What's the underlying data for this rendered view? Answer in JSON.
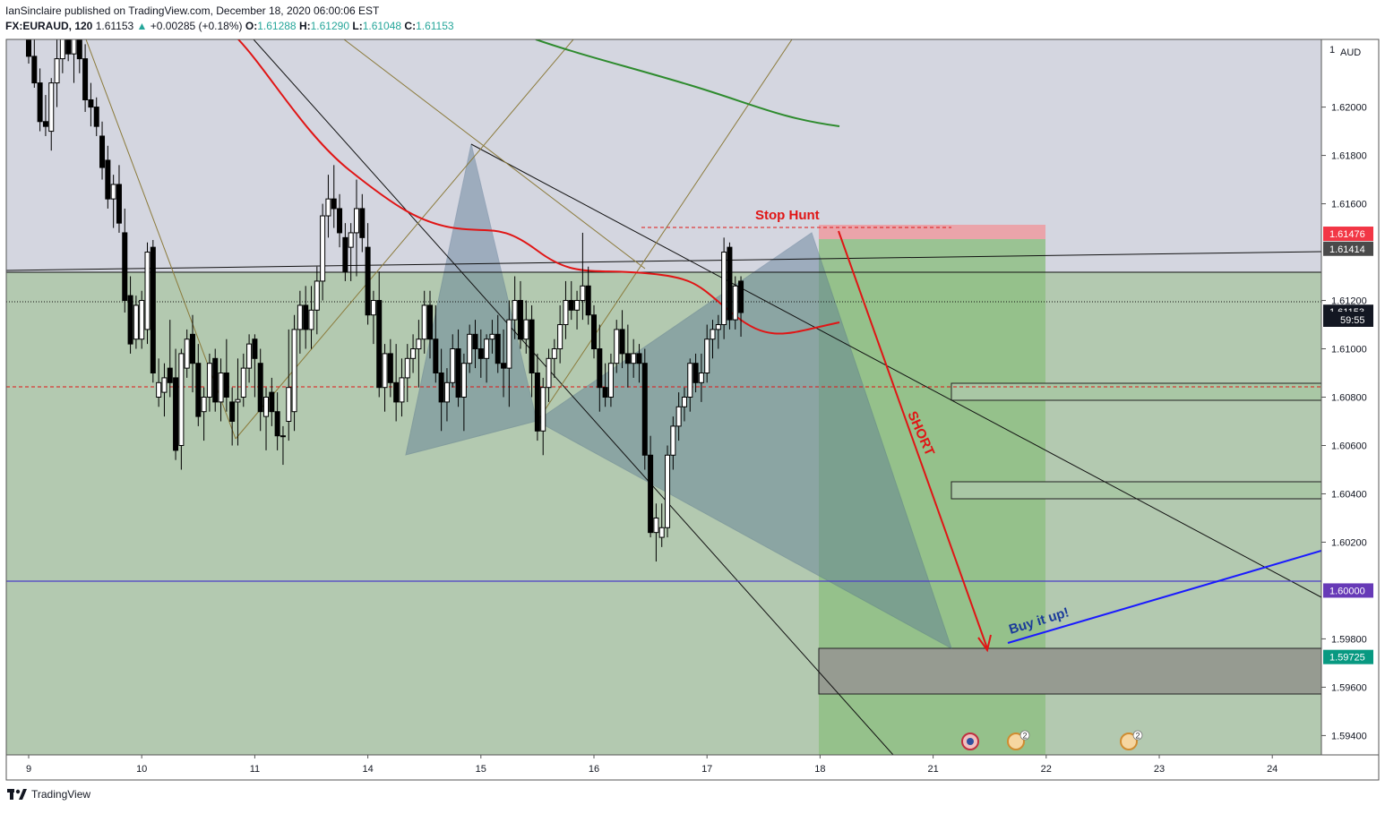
{
  "header": {
    "publisher_line": "IanSinclaire published on TradingView.com, December 18, 2020 06:00:06 EST",
    "symbol": "FX:EURAUD, 120",
    "last": "1.61153",
    "change_arrow": "▲",
    "change": "+0.00285 (+0.18%)",
    "o_label": "O:",
    "o_value": "1.61288",
    "h_label": "H:",
    "h_value": "1.61290",
    "l_label": "L:",
    "l_value": "1.61048",
    "c_label": "C:",
    "c_value": "1.61153"
  },
  "footer": {
    "brand": "TradingView"
  },
  "chart_data": {
    "type": "candlestick",
    "currency_label": "AUD",
    "ylim": [
      1.5932,
      1.6228
    ],
    "y_ticks": [
      "1.62000",
      "1.61800",
      "1.61600",
      "1.61200",
      "1.61000",
      "1.60800",
      "1.60600",
      "1.60400",
      "1.60200",
      "1.59800",
      "1.59600",
      "1.59400"
    ],
    "x_labels": [
      {
        "label": "9",
        "x": 0
      },
      {
        "label": "10",
        "x": 1
      },
      {
        "label": "11",
        "x": 2
      },
      {
        "label": "14",
        "x": 3
      },
      {
        "label": "15",
        "x": 4
      },
      {
        "label": "16",
        "x": 5
      },
      {
        "label": "17",
        "x": 6
      },
      {
        "label": "18",
        "x": 7
      },
      {
        "label": "21",
        "x": 8
      },
      {
        "label": "22",
        "x": 9
      },
      {
        "label": "23",
        "x": 10
      },
      {
        "label": "24",
        "x": 11
      }
    ],
    "price_badges": [
      {
        "value": 1.61476,
        "text": "1.61476",
        "bg": "#f23645",
        "fg": "#ffffff"
      },
      {
        "value": 1.61414,
        "text": "1.61414",
        "bg": "#4a4a4a",
        "fg": "#ffffff"
      },
      {
        "value": 1.61153,
        "text": "1.61153",
        "bg": "#131722",
        "fg": "#ffffff"
      },
      {
        "value": 1.6,
        "text": "1.60000",
        "bg": "#673ab7",
        "fg": "#ffffff"
      },
      {
        "value": 1.59725,
        "text": "1.59725",
        "bg": "#089981",
        "fg": "#ffffff"
      }
    ],
    "countdown": "59:55",
    "annotations": {
      "stop_hunt": "Stop Hunt",
      "short": "SHORT",
      "buy": "Buy it up!"
    },
    "colors": {
      "up_candle": "#ffffff",
      "down_candle": "#000000",
      "ema": "#e01515",
      "ema_long": "#2e8b2e",
      "green_zone": "#8fbc8f",
      "stop_zone": "#f4a3a8",
      "pattern": "#5b7c99",
      "horizontal": "#4b3fc8",
      "buy_line": "#1a1aff"
    },
    "candles": [
      [
        0.0,
        1.6232,
        1.6236,
        1.6218,
        1.6221
      ],
      [
        0.05,
        1.6221,
        1.624,
        1.6208,
        1.621
      ],
      [
        0.1,
        1.621,
        1.6216,
        1.619,
        1.6194
      ],
      [
        0.15,
        1.6194,
        1.6205,
        1.6188,
        1.6192
      ],
      [
        0.2,
        1.619,
        1.6212,
        1.6182,
        1.621
      ],
      [
        0.25,
        1.621,
        1.6228,
        1.62,
        1.622
      ],
      [
        0.3,
        1.622,
        1.6238,
        1.6214,
        1.6232
      ],
      [
        0.35,
        1.6232,
        1.624,
        1.6219,
        1.6222
      ],
      [
        0.4,
        1.6222,
        1.6233,
        1.621,
        1.6228
      ],
      [
        0.45,
        1.6228,
        1.6236,
        1.6214,
        1.622
      ],
      [
        0.5,
        1.622,
        1.6226,
        1.6198,
        1.6203
      ],
      [
        0.55,
        1.6203,
        1.621,
        1.6192,
        1.62
      ],
      [
        0.6,
        1.62,
        1.6204,
        1.6188,
        1.6192
      ],
      [
        0.65,
        1.6188,
        1.6194,
        1.617,
        1.6175
      ],
      [
        0.7,
        1.6178,
        1.6184,
        1.6158,
        1.6162
      ],
      [
        0.75,
        1.6162,
        1.6172,
        1.615,
        1.6168
      ],
      [
        0.8,
        1.6168,
        1.6176,
        1.6148,
        1.6152
      ],
      [
        0.85,
        1.6148,
        1.6158,
        1.6115,
        1.612
      ],
      [
        0.9,
        1.6122,
        1.613,
        1.6098,
        1.6102
      ],
      [
        0.95,
        1.6104,
        1.6122,
        1.61,
        1.6118
      ],
      [
        1.0,
        1.6104,
        1.6124,
        1.61,
        1.612
      ],
      [
        1.05,
        1.6108,
        1.6144,
        1.6102,
        1.614
      ],
      [
        1.1,
        1.6142,
        1.6145,
        1.6086,
        1.609
      ],
      [
        1.15,
        1.608,
        1.6096,
        1.6076,
        1.6086
      ],
      [
        1.2,
        1.6082,
        1.6094,
        1.6072,
        1.6088
      ],
      [
        1.25,
        1.6092,
        1.6112,
        1.608,
        1.6086
      ],
      [
        1.3,
        1.6088,
        1.61,
        1.6054,
        1.6058
      ],
      [
        1.35,
        1.606,
        1.61,
        1.605,
        1.6098
      ],
      [
        1.4,
        1.6092,
        1.6108,
        1.6088,
        1.6104
      ],
      [
        1.45,
        1.6106,
        1.6114,
        1.6082,
        1.6094
      ],
      [
        1.5,
        1.6094,
        1.6102,
        1.6068,
        1.6072
      ],
      [
        1.55,
        1.6074,
        1.6084,
        1.6062,
        1.608
      ],
      [
        1.6,
        1.608,
        1.6098,
        1.6074,
        1.6094
      ],
      [
        1.65,
        1.6096,
        1.61,
        1.6074,
        1.6078
      ],
      [
        1.7,
        1.6078,
        1.6096,
        1.607,
        1.609
      ],
      [
        1.75,
        1.609,
        1.6104,
        1.6074,
        1.608
      ],
      [
        1.8,
        1.6078,
        1.6084,
        1.606,
        1.607
      ],
      [
        1.85,
        1.6078,
        1.6096,
        1.606,
        1.6079
      ],
      [
        1.9,
        1.608,
        1.6098,
        1.6076,
        1.6092
      ],
      [
        1.95,
        1.6092,
        1.6106,
        1.6086,
        1.6102
      ],
      [
        2.0,
        1.6104,
        1.6106,
        1.608,
        1.6096
      ],
      [
        2.05,
        1.6094,
        1.61,
        1.6066,
        1.6074
      ],
      [
        2.1,
        1.6072,
        1.6084,
        1.6058,
        1.608
      ],
      [
        2.15,
        1.6082,
        1.6088,
        1.6068,
        1.6074
      ],
      [
        2.2,
        1.6074,
        1.6082,
        1.6058,
        1.6064
      ],
      [
        2.25,
        1.6064,
        1.6068,
        1.6052,
        1.6064
      ],
      [
        2.3,
        1.607,
        1.6108,
        1.6062,
        1.6084
      ],
      [
        2.35,
        1.6074,
        1.6114,
        1.6066,
        1.6108
      ],
      [
        2.4,
        1.6108,
        1.6124,
        1.6098,
        1.6118
      ],
      [
        2.45,
        1.6118,
        1.6126,
        1.61,
        1.6108
      ],
      [
        2.5,
        1.6108,
        1.6126,
        1.61,
        1.6116
      ],
      [
        2.55,
        1.6116,
        1.6134,
        1.6106,
        1.6128
      ],
      [
        2.6,
        1.6128,
        1.616,
        1.612,
        1.6155
      ],
      [
        2.65,
        1.6155,
        1.6172,
        1.6146,
        1.6162
      ],
      [
        2.7,
        1.6162,
        1.6176,
        1.615,
        1.6158
      ],
      [
        2.75,
        1.6158,
        1.6164,
        1.6142,
        1.6148
      ],
      [
        2.8,
        1.6146,
        1.6152,
        1.6128,
        1.6132
      ],
      [
        2.85,
        1.6142,
        1.6152,
        1.6128,
        1.6148
      ],
      [
        2.9,
        1.6148,
        1.617,
        1.613,
        1.6158
      ],
      [
        2.95,
        1.6158,
        1.6164,
        1.614,
        1.6146
      ],
      [
        3.0,
        1.6142,
        1.6152,
        1.611,
        1.6114
      ],
      [
        3.05,
        1.6114,
        1.6124,
        1.6102,
        1.612
      ],
      [
        3.1,
        1.612,
        1.6132,
        1.608,
        1.6084
      ],
      [
        3.15,
        1.6084,
        1.6102,
        1.6074,
        1.6098
      ],
      [
        3.2,
        1.6098,
        1.6104,
        1.608,
        1.6086
      ],
      [
        3.25,
        1.6086,
        1.6102,
        1.607,
        1.6078
      ],
      [
        3.3,
        1.6078,
        1.6096,
        1.6072,
        1.6088
      ],
      [
        3.35,
        1.6088,
        1.6102,
        1.6078,
        1.6096
      ],
      [
        3.4,
        1.6096,
        1.6106,
        1.609,
        1.61
      ],
      [
        3.45,
        1.61,
        1.6112,
        1.6084,
        1.6104
      ],
      [
        3.5,
        1.6104,
        1.6124,
        1.6098,
        1.6118
      ],
      [
        3.55,
        1.6118,
        1.6124,
        1.6096,
        1.6104
      ],
      [
        3.6,
        1.6104,
        1.6118,
        1.6086,
        1.609
      ],
      [
        3.65,
        1.609,
        1.61,
        1.6066,
        1.6078
      ],
      [
        3.7,
        1.6078,
        1.6092,
        1.607,
        1.6086
      ],
      [
        3.75,
        1.6086,
        1.6106,
        1.6084,
        1.61
      ],
      [
        3.8,
        1.61,
        1.6108,
        1.6076,
        1.608
      ],
      [
        3.85,
        1.608,
        1.6098,
        1.6066,
        1.6094
      ],
      [
        3.9,
        1.6094,
        1.611,
        1.609,
        1.6106
      ],
      [
        3.95,
        1.6106,
        1.6112,
        1.6092,
        1.61
      ],
      [
        4.0,
        1.61,
        1.6108,
        1.6088,
        1.6096
      ],
      [
        4.05,
        1.6096,
        1.6106,
        1.6086,
        1.6104
      ],
      [
        4.1,
        1.6104,
        1.6112,
        1.6098,
        1.6106
      ],
      [
        4.15,
        1.6106,
        1.6114,
        1.609,
        1.6094
      ],
      [
        4.2,
        1.6094,
        1.6108,
        1.608,
        1.6092
      ],
      [
        4.25,
        1.6092,
        1.612,
        1.6076,
        1.6112
      ],
      [
        4.3,
        1.6112,
        1.613,
        1.6104,
        1.612
      ],
      [
        4.35,
        1.612,
        1.6128,
        1.61,
        1.6104
      ],
      [
        4.4,
        1.6104,
        1.612,
        1.6098,
        1.6112
      ],
      [
        4.45,
        1.6112,
        1.6118,
        1.608,
        1.609
      ],
      [
        4.5,
        1.609,
        1.6098,
        1.6062,
        1.6066
      ],
      [
        4.55,
        1.6066,
        1.6088,
        1.6056,
        1.6084
      ],
      [
        4.6,
        1.6084,
        1.61,
        1.6078,
        1.6096
      ],
      [
        4.65,
        1.6096,
        1.6104,
        1.6088,
        1.61
      ],
      [
        4.7,
        1.61,
        1.6118,
        1.6094,
        1.611
      ],
      [
        4.75,
        1.611,
        1.6128,
        1.6104,
        1.612
      ],
      [
        4.8,
        1.612,
        1.6128,
        1.6112,
        1.6116
      ],
      [
        4.85,
        1.6116,
        1.6124,
        1.6108,
        1.612
      ],
      [
        4.9,
        1.612,
        1.6148,
        1.6112,
        1.6126
      ],
      [
        4.95,
        1.6126,
        1.6134,
        1.611,
        1.6114
      ],
      [
        5.0,
        1.6114,
        1.6118,
        1.6096,
        1.61
      ],
      [
        5.05,
        1.61,
        1.611,
        1.6074,
        1.6084
      ],
      [
        5.1,
        1.6084,
        1.6094,
        1.6076,
        1.608
      ],
      [
        5.15,
        1.608,
        1.6098,
        1.6076,
        1.6094
      ],
      [
        5.2,
        1.6094,
        1.6112,
        1.609,
        1.6108
      ],
      [
        5.25,
        1.6108,
        1.6116,
        1.6092,
        1.6098
      ],
      [
        5.3,
        1.6098,
        1.611,
        1.6084,
        1.6094
      ],
      [
        5.35,
        1.6094,
        1.6104,
        1.6088,
        1.6098
      ],
      [
        5.4,
        1.6098,
        1.6102,
        1.6086,
        1.6094
      ],
      [
        5.45,
        1.6094,
        1.61,
        1.605,
        1.6056
      ],
      [
        5.5,
        1.6056,
        1.6064,
        1.6022,
        1.6024
      ],
      [
        5.55,
        1.6024,
        1.6036,
        1.6012,
        1.603
      ],
      [
        5.6,
        1.6022,
        1.6036,
        1.6018,
        1.6026
      ],
      [
        5.65,
        1.6026,
        1.606,
        1.6022,
        1.6056
      ],
      [
        5.7,
        1.6056,
        1.6072,
        1.605,
        1.6068
      ],
      [
        5.75,
        1.6068,
        1.6082,
        1.6062,
        1.6076
      ],
      [
        5.8,
        1.6076,
        1.6084,
        1.607,
        1.608
      ],
      [
        5.85,
        1.608,
        1.6096,
        1.6074,
        1.6094
      ],
      [
        5.9,
        1.6094,
        1.6098,
        1.6082,
        1.6086
      ],
      [
        5.95,
        1.6086,
        1.6098,
        1.6078,
        1.609
      ],
      [
        6.0,
        1.609,
        1.611,
        1.6086,
        1.6104
      ],
      [
        6.05,
        1.6104,
        1.6112,
        1.6096,
        1.6108
      ],
      [
        6.1,
        1.6108,
        1.6114,
        1.61,
        1.611
      ],
      [
        6.15,
        1.611,
        1.6146,
        1.6104,
        1.614
      ],
      [
        6.2,
        1.6142,
        1.6144,
        1.6108,
        1.6112
      ],
      [
        6.25,
        1.6112,
        1.613,
        1.6108,
        1.6126
      ],
      [
        6.3,
        1.6128,
        1.613,
        1.6105,
        1.6115
      ]
    ]
  }
}
